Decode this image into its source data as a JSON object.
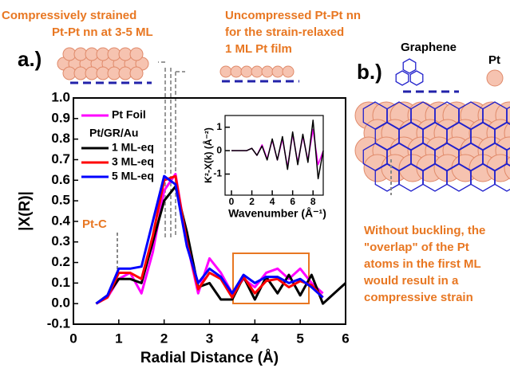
{
  "chart_data": [
    {
      "type": "line",
      "x_label": "Radial Distance (Å)",
      "y_label": "|X(R)|",
      "legend_title": "Pt/GR/Au",
      "xlim": [
        0,
        6
      ],
      "ylim": [
        -0.1,
        1.0
      ],
      "xticks": [
        0,
        1,
        2,
        3,
        4,
        5,
        6
      ],
      "yticks": [
        -0.1,
        {
          "value": 0,
          "label": "0.0"
        },
        0.1,
        0.2,
        0.3,
        0.4,
        0.5,
        0.6,
        0.7,
        0.8,
        0.9,
        {
          "value": 1,
          "label": "1.0"
        }
      ],
      "x": [
        0.5,
        0.75,
        1.0,
        1.25,
        1.5,
        1.75,
        2.0,
        2.25,
        2.5,
        2.75,
        3.0,
        3.25,
        3.5,
        3.75,
        4.0,
        4.25,
        4.5,
        4.75,
        5.0,
        5.25,
        5.5,
        5.75,
        6.0
      ],
      "series": [
        {
          "name": "Pt Foil",
          "color": "#ff00ff",
          "values": [
            0.0,
            0.03,
            0.12,
            0.15,
            0.05,
            0.25,
            0.55,
            0.63,
            0.3,
            0.05,
            0.22,
            0.15,
            0.05,
            0.12,
            0.08,
            0.15,
            0.17,
            0.12,
            0.17,
            0.1,
            0.05,
            null,
            null
          ]
        },
        {
          "name": "1 ML-eq",
          "color": "#000000",
          "values": [
            0.0,
            0.04,
            0.12,
            0.12,
            0.1,
            0.3,
            0.5,
            0.57,
            0.35,
            0.08,
            0.1,
            0.02,
            0.02,
            0.13,
            0.02,
            0.13,
            0.05,
            0.14,
            0.04,
            0.14,
            0.0,
            0.05,
            0.1
          ]
        },
        {
          "name": "3 ML-eq",
          "color": "#ff0000",
          "values": [
            0.0,
            0.03,
            0.15,
            0.15,
            0.12,
            0.33,
            0.6,
            0.62,
            0.3,
            0.07,
            0.15,
            0.12,
            0.03,
            0.13,
            0.05,
            0.11,
            0.12,
            0.08,
            0.11,
            0.09,
            0.03,
            null,
            null
          ]
        },
        {
          "name": "5 ML-eq",
          "color": "#0000ff",
          "values": [
            0.0,
            0.04,
            0.17,
            0.17,
            0.18,
            0.4,
            0.62,
            0.58,
            0.28,
            0.1,
            0.17,
            0.13,
            0.05,
            0.14,
            0.1,
            0.13,
            0.13,
            0.1,
            0.12,
            0.08,
            0.03,
            null,
            null
          ]
        }
      ]
    },
    {
      "type": "line",
      "x_label": "Wavenumber (Å⁻¹)",
      "y_label": "K²-X(k) (Å⁻²)",
      "xlim": [
        0,
        9
      ],
      "ylim": [
        -1.9,
        1.5
      ],
      "xticks": [
        0,
        2,
        4,
        6,
        8
      ],
      "yticks": [
        -1,
        0,
        1
      ],
      "x": [
        0,
        0.5,
        1,
        1.5,
        2,
        2.5,
        3,
        3.5,
        4,
        4.5,
        5,
        5.5,
        6,
        6.5,
        7,
        7.5,
        8,
        8.5,
        9
      ],
      "series": [
        {
          "color": "#ff00ff",
          "values": [
            0,
            0,
            0,
            0,
            0.1,
            -0.2,
            0.25,
            -0.35,
            0.45,
            -0.4,
            0.5,
            -0.7,
            0.7,
            -0.5,
            0.6,
            -0.4,
            0.9,
            -0.6,
            0
          ]
        },
        {
          "color": "#000000",
          "values": [
            0,
            0,
            0,
            0,
            0.1,
            -0.2,
            0.2,
            -0.4,
            0.5,
            -0.4,
            0.6,
            -0.8,
            0.8,
            -0.6,
            0.7,
            -0.5,
            1.3,
            -1.2,
            0
          ]
        }
      ]
    }
  ],
  "annotations": {
    "panel_a": "a.)",
    "panel_b": "b.)",
    "compressed": [
      "Compressively strained",
      "Pt-Pt nn at 3-5 ML"
    ],
    "uncompressed": [
      "Uncompressed Pt-Pt nn",
      "for the strain-relaxed",
      "1 ML Pt film"
    ],
    "pt_c": "Pt-C",
    "graphene": "Graphene",
    "pt": "Pt",
    "note": [
      "Without buckling, the",
      "\"overlap\" of the Pt",
      "atoms in the first ML",
      "would result in a",
      "compressive strain"
    ]
  }
}
